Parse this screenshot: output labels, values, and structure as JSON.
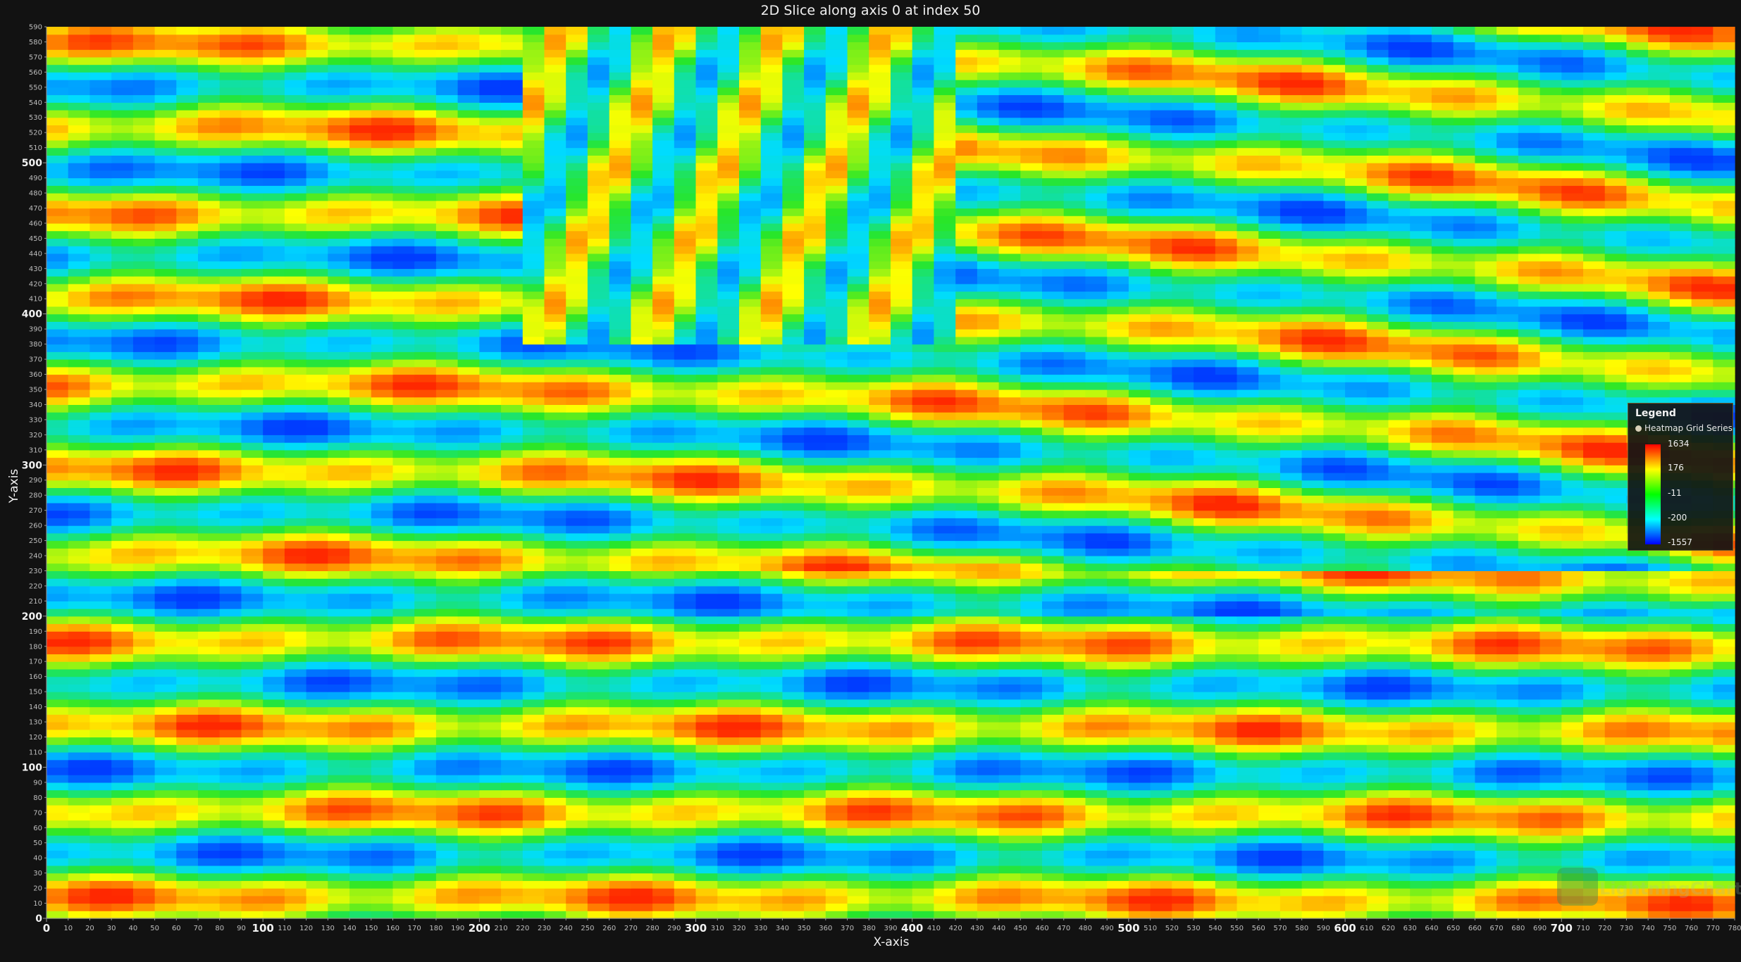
{
  "chart_data": {
    "type": "heatmap",
    "title": "2D Slice along axis 0 at index 50",
    "xlabel": "X-axis",
    "ylabel": "Y-axis",
    "xlim": [
      0,
      780
    ],
    "ylim": [
      0,
      590
    ],
    "x_ticks_step": 10,
    "y_ticks_step": 10,
    "x_major_step": 100,
    "y_major_step": 100,
    "grid": false,
    "legend": {
      "title": "Legend",
      "series_name": "Heatmap Grid Series",
      "placement": "right",
      "color_stops": [
        {
          "value": 1634,
          "color": "#ff0000"
        },
        {
          "value": 176,
          "color": "#ffff00"
        },
        {
          "value": -11,
          "color": "#00ff00"
        },
        {
          "value": -200,
          "color": "#00ffff"
        },
        {
          "value": -1557,
          "color": "#0000ff"
        }
      ]
    },
    "value_range": [
      -1557,
      1634
    ]
  },
  "watermark": {
    "text": "LightningChart"
  }
}
